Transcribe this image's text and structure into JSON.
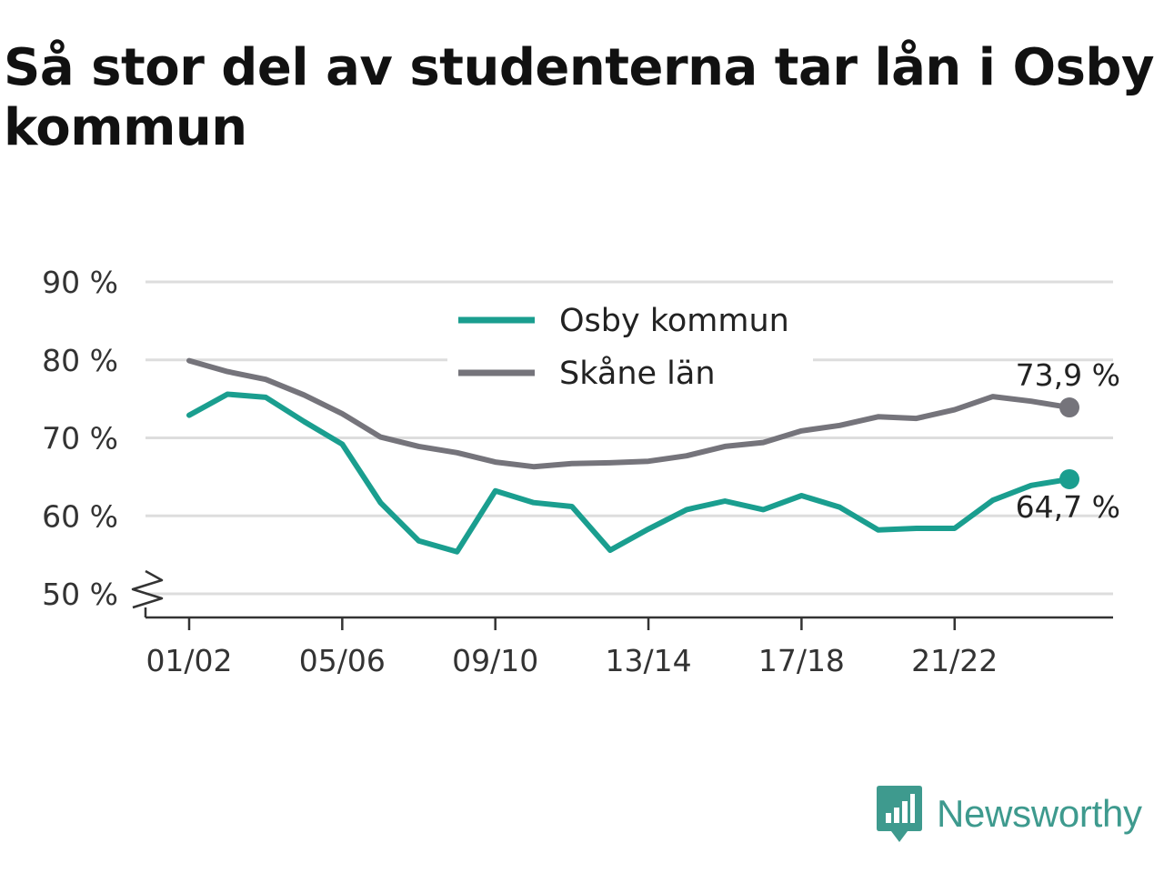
{
  "title": "Så stor del av studenterna tar lån i Osby kommun",
  "brand": {
    "name": "Newsworthy",
    "icon": "newsworthy-logo-icon",
    "color": "#3e9a8e"
  },
  "chart_data": {
    "type": "line",
    "x": [
      "01/02",
      "02/03",
      "03/04",
      "04/05",
      "05/06",
      "06/07",
      "07/08",
      "08/09",
      "09/10",
      "10/11",
      "11/12",
      "12/13",
      "13/14",
      "14/15",
      "15/16",
      "16/17",
      "17/18",
      "18/19",
      "19/20",
      "20/21",
      "21/22",
      "22/23",
      "23/24",
      "24/25"
    ],
    "x_tick_labels": [
      "01/02",
      "05/06",
      "09/10",
      "13/14",
      "17/18",
      "21/22"
    ],
    "y_tick_labels": [
      "50 %",
      "60 %",
      "70 %",
      "80 %",
      "90 %"
    ],
    "y_ticks": [
      50,
      60,
      70,
      80,
      90
    ],
    "ylim": [
      47,
      91
    ],
    "y_axis_break": true,
    "grid": true,
    "legend": "top-center",
    "xlabel": "",
    "ylabel": "",
    "series": [
      {
        "name": "Osby kommun",
        "color": "#1a9e8f",
        "values": [
          72.9,
          75.6,
          75.2,
          72.1,
          69.2,
          61.7,
          56.8,
          55.4,
          63.2,
          61.7,
          61.2,
          55.6,
          58.3,
          60.8,
          61.9,
          60.8,
          62.6,
          61.1,
          58.2,
          58.4,
          58.4,
          62.0,
          63.9,
          64.7
        ],
        "end_label": "64,7 %"
      },
      {
        "name": "Skåne län",
        "color": "#75747b",
        "values": [
          79.9,
          78.5,
          77.5,
          75.5,
          73.1,
          70.1,
          68.9,
          68.1,
          66.9,
          66.3,
          66.7,
          66.8,
          67.0,
          67.7,
          68.9,
          69.4,
          70.9,
          71.6,
          72.7,
          72.5,
          73.6,
          75.3,
          74.7,
          73.9
        ],
        "end_label": "73,9 %"
      }
    ]
  }
}
